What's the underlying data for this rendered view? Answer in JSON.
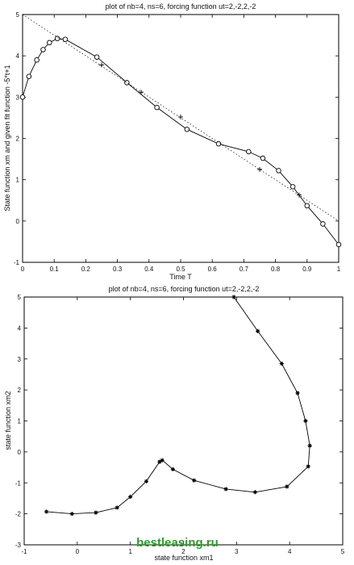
{
  "chart_data": [
    {
      "type": "line",
      "title": "plot of nb=4, ns=6, forcing function ut=2,-2,2,-2",
      "xlabel": "Time T",
      "ylabel": "State function xm and given fit function -5*t+1",
      "xlim": [
        0,
        1
      ],
      "ylim": [
        -1,
        5
      ],
      "xticks": [
        "0",
        "0.1",
        "0.2",
        "0.3",
        "0.4",
        "0.5",
        "0.6",
        "0.7",
        "0.8",
        "0.9",
        "1"
      ],
      "yticks": [
        "-1",
        "0",
        "1",
        "2",
        "3",
        "4",
        "5"
      ],
      "grid": false,
      "series": [
        {
          "style": "solid line with circle markers",
          "x": [
            0,
            0.02,
            0.045,
            0.065,
            0.085,
            0.11,
            0.135,
            0.235,
            0.33,
            0.425,
            0.52,
            0.62,
            0.715,
            0.76,
            0.81,
            0.855,
            0.9,
            0.95,
            1.0
          ],
          "y": [
            3.0,
            3.5,
            3.9,
            4.15,
            4.32,
            4.42,
            4.4,
            3.97,
            3.35,
            2.75,
            2.22,
            1.87,
            1.68,
            1.52,
            1.22,
            0.83,
            0.37,
            -0.07,
            -0.57
          ]
        },
        {
          "style": "dotted line",
          "x": [
            0,
            1
          ],
          "y": [
            5,
            0
          ]
        },
        {
          "style": "plus markers",
          "x": [
            0.25,
            0.375,
            0.5,
            0.75,
            0.875
          ],
          "y": [
            3.78,
            3.12,
            2.52,
            1.25,
            0.63
          ]
        }
      ]
    },
    {
      "type": "line",
      "title": "plot of nb=4, ns=6, forcing function ut=2,-2,2,-2",
      "xlabel": "state function xm1",
      "ylabel": "state function xm2",
      "xlim": [
        -1,
        5
      ],
      "ylim": [
        -3,
        5
      ],
      "xticks": [
        "-1",
        "0",
        "1",
        "2",
        "3",
        "4",
        "5"
      ],
      "yticks": [
        "-3",
        "-2",
        "-1",
        "0",
        "1",
        "2",
        "3",
        "4",
        "5"
      ],
      "grid": false,
      "series": [
        {
          "style": "solid line with star markers",
          "x": [
            2.95,
            3.4,
            3.85,
            4.15,
            4.3,
            4.38,
            4.35,
            3.95,
            3.35,
            2.8,
            2.2,
            1.8,
            1.6,
            1.55,
            1.3,
            1.0,
            0.75,
            0.35,
            -0.1,
            -0.58
          ],
          "y": [
            5.0,
            3.9,
            2.85,
            1.9,
            1.0,
            0.2,
            -0.47,
            -1.12,
            -1.3,
            -1.2,
            -0.92,
            -0.56,
            -0.27,
            -0.32,
            -0.95,
            -1.45,
            -1.8,
            -1.96,
            -2.0,
            -1.93
          ]
        }
      ]
    }
  ],
  "watermark": "bestleasing.ru"
}
